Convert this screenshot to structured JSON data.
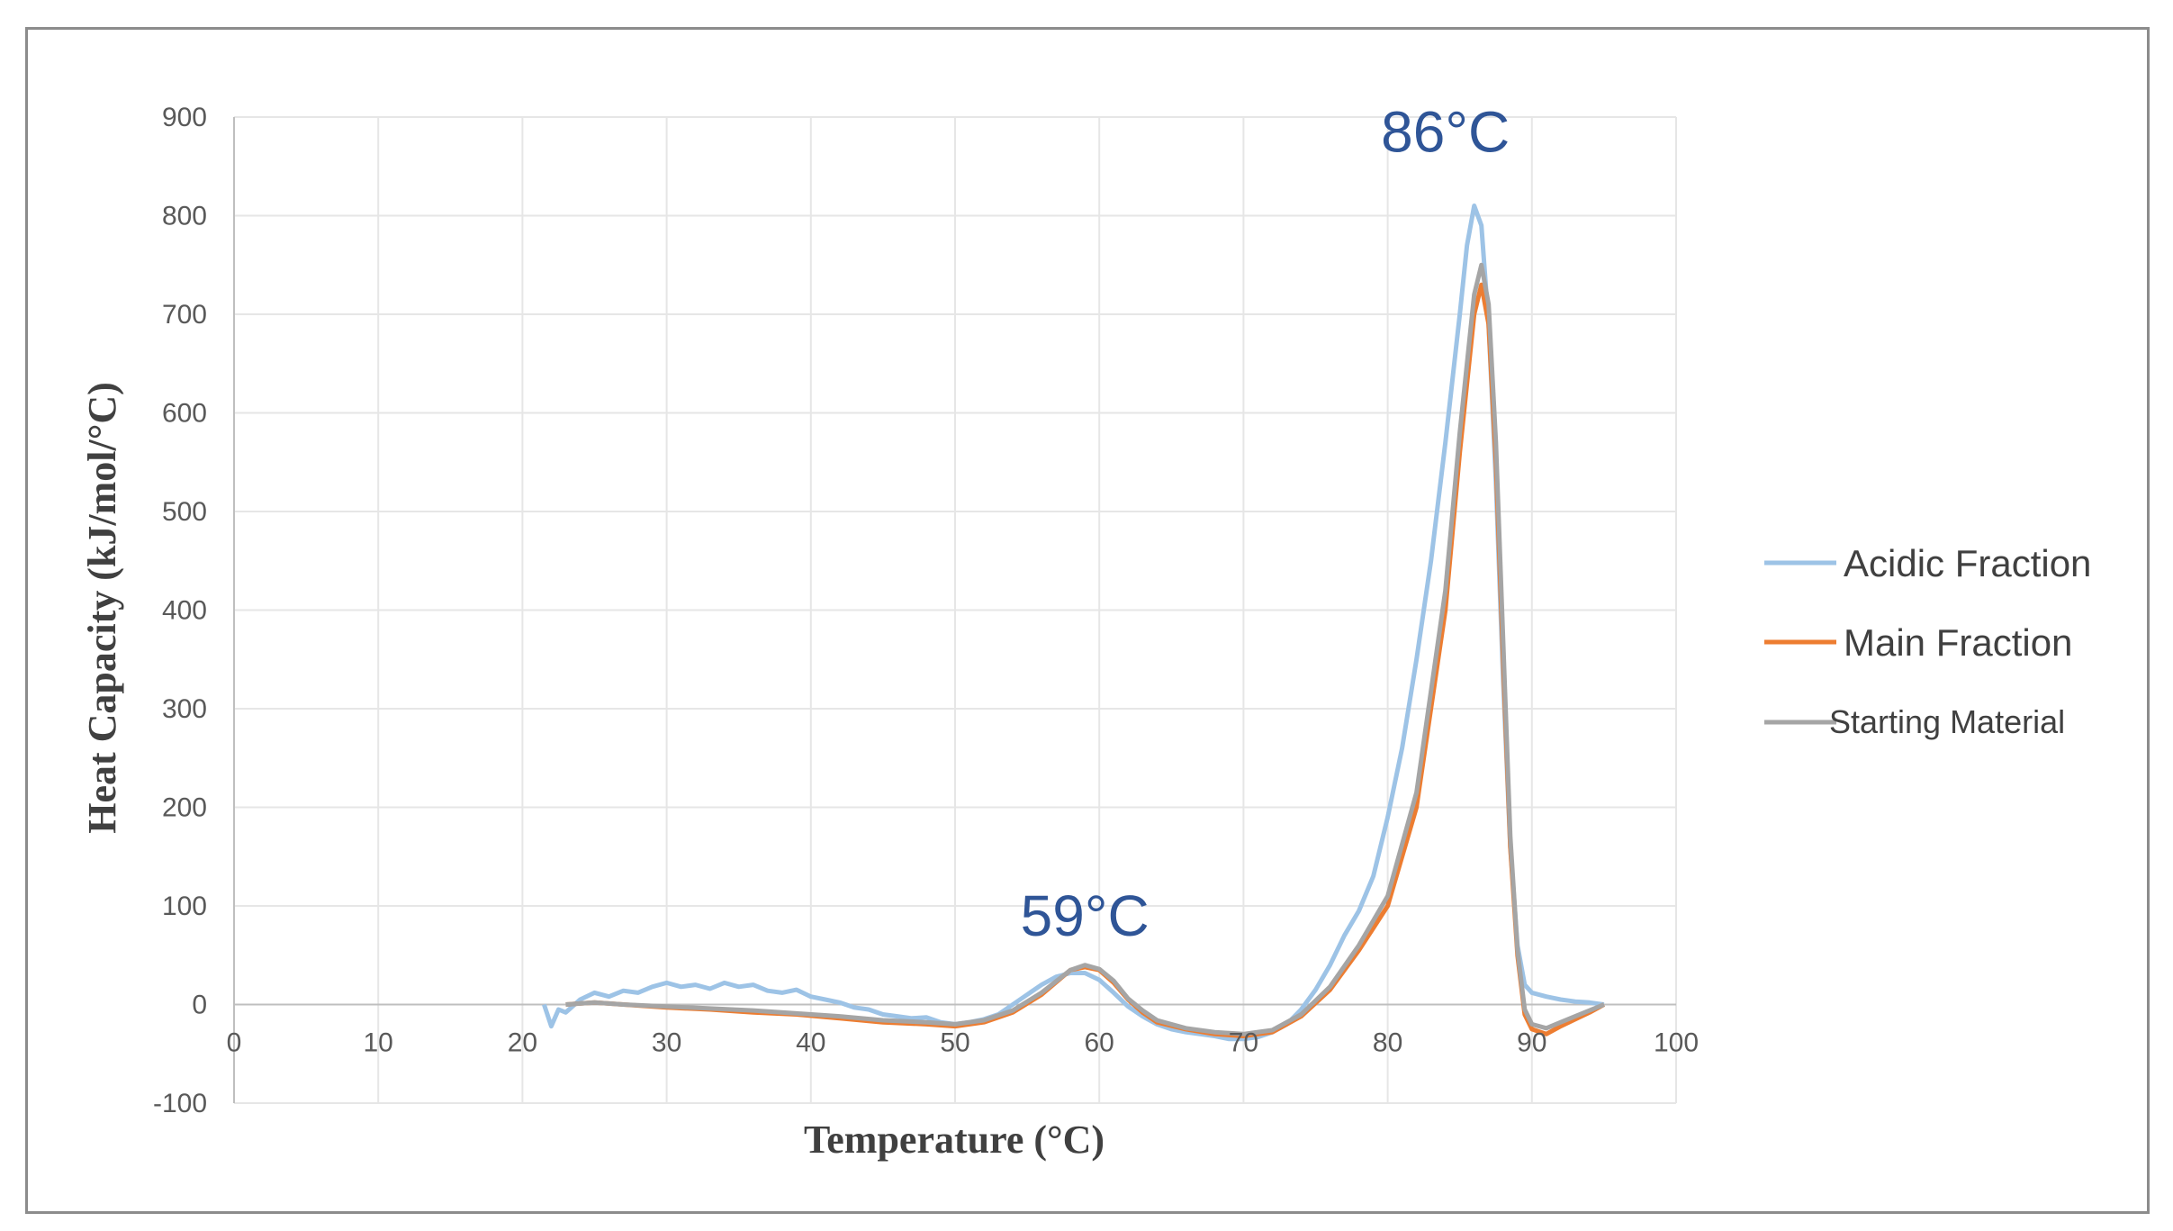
{
  "chart_data": {
    "type": "line",
    "title": "",
    "xlabel": "Temperature (°C)",
    "ylabel": "Heat Capacity (kJ/mol/°C)",
    "xlim": [
      0,
      100
    ],
    "ylim": [
      -100,
      900
    ],
    "xticks": [
      "0",
      "10",
      "20",
      "30",
      "40",
      "50",
      "60",
      "70",
      "80",
      "90",
      "100"
    ],
    "yticks": [
      "-100",
      "0",
      "100",
      "200",
      "300",
      "400",
      "500",
      "600",
      "700",
      "800",
      "900"
    ],
    "grid": true,
    "legend_position": "right",
    "annotations": [
      {
        "text": "86°C",
        "x": 84,
        "y": 865
      },
      {
        "text": "59°C",
        "x": 59,
        "y": 70
      }
    ],
    "series": [
      {
        "name": "Acidic Fraction",
        "color": "#9dc3e6",
        "points": [
          [
            21.5,
            0
          ],
          [
            22,
            -22
          ],
          [
            22.5,
            -5
          ],
          [
            23,
            -8
          ],
          [
            24,
            5
          ],
          [
            25,
            12
          ],
          [
            26,
            8
          ],
          [
            27,
            14
          ],
          [
            28,
            12
          ],
          [
            29,
            18
          ],
          [
            30,
            22
          ],
          [
            31,
            18
          ],
          [
            32,
            20
          ],
          [
            33,
            16
          ],
          [
            34,
            22
          ],
          [
            35,
            18
          ],
          [
            36,
            20
          ],
          [
            37,
            14
          ],
          [
            38,
            12
          ],
          [
            39,
            15
          ],
          [
            40,
            8
          ],
          [
            41,
            5
          ],
          [
            42,
            2
          ],
          [
            43,
            -3
          ],
          [
            44,
            -5
          ],
          [
            45,
            -10
          ],
          [
            46,
            -12
          ],
          [
            47,
            -14
          ],
          [
            48,
            -13
          ],
          [
            49,
            -18
          ],
          [
            50,
            -20
          ],
          [
            51,
            -18
          ],
          [
            52,
            -15
          ],
          [
            53,
            -10
          ],
          [
            54,
            0
          ],
          [
            55,
            10
          ],
          [
            56,
            20
          ],
          [
            57,
            28
          ],
          [
            58,
            32
          ],
          [
            59,
            32
          ],
          [
            60,
            25
          ],
          [
            61,
            12
          ],
          [
            62,
            -2
          ],
          [
            63,
            -12
          ],
          [
            64,
            -20
          ],
          [
            65,
            -25
          ],
          [
            66,
            -28
          ],
          [
            67,
            -30
          ],
          [
            68,
            -32
          ],
          [
            69,
            -35
          ],
          [
            70,
            -35
          ],
          [
            71,
            -33
          ],
          [
            72,
            -28
          ],
          [
            73,
            -20
          ],
          [
            74,
            -5
          ],
          [
            75,
            15
          ],
          [
            76,
            40
          ],
          [
            77,
            70
          ],
          [
            78,
            95
          ],
          [
            79,
            130
          ],
          [
            80,
            190
          ],
          [
            81,
            260
          ],
          [
            82,
            350
          ],
          [
            83,
            450
          ],
          [
            84,
            570
          ],
          [
            85,
            700
          ],
          [
            85.5,
            770
          ],
          [
            86,
            810
          ],
          [
            86.5,
            790
          ],
          [
            87,
            690
          ],
          [
            87.5,
            530
          ],
          [
            88,
            330
          ],
          [
            88.5,
            160
          ],
          [
            89,
            60
          ],
          [
            89.5,
            20
          ],
          [
            90,
            12
          ],
          [
            91,
            8
          ],
          [
            92,
            5
          ],
          [
            93,
            3
          ],
          [
            94,
            2
          ],
          [
            95,
            0
          ]
        ]
      },
      {
        "name": "Main Fraction",
        "color": "#ed7d31",
        "points": [
          [
            23,
            0
          ],
          [
            25,
            2
          ],
          [
            27,
            0
          ],
          [
            30,
            -3
          ],
          [
            33,
            -5
          ],
          [
            36,
            -8
          ],
          [
            39,
            -10
          ],
          [
            42,
            -14
          ],
          [
            45,
            -18
          ],
          [
            48,
            -20
          ],
          [
            50,
            -22
          ],
          [
            52,
            -18
          ],
          [
            54,
            -8
          ],
          [
            56,
            10
          ],
          [
            58,
            35
          ],
          [
            59,
            38
          ],
          [
            60,
            35
          ],
          [
            61,
            22
          ],
          [
            62,
            5
          ],
          [
            63,
            -8
          ],
          [
            64,
            -18
          ],
          [
            66,
            -25
          ],
          [
            68,
            -30
          ],
          [
            70,
            -32
          ],
          [
            72,
            -28
          ],
          [
            74,
            -12
          ],
          [
            76,
            15
          ],
          [
            78,
            55
          ],
          [
            80,
            100
          ],
          [
            82,
            200
          ],
          [
            84,
            400
          ],
          [
            85,
            560
          ],
          [
            86,
            700
          ],
          [
            86.5,
            730
          ],
          [
            87,
            690
          ],
          [
            87.5,
            550
          ],
          [
            88,
            350
          ],
          [
            88.5,
            160
          ],
          [
            89,
            50
          ],
          [
            89.5,
            -10
          ],
          [
            90,
            -25
          ],
          [
            91,
            -30
          ],
          [
            92,
            -22
          ],
          [
            93,
            -15
          ],
          [
            94,
            -8
          ],
          [
            95,
            0
          ]
        ]
      },
      {
        "name": "Starting Material",
        "color": "#a5a5a5",
        "points": [
          [
            23,
            0
          ],
          [
            25,
            2
          ],
          [
            27,
            0
          ],
          [
            30,
            -2
          ],
          [
            33,
            -4
          ],
          [
            36,
            -6
          ],
          [
            39,
            -9
          ],
          [
            42,
            -12
          ],
          [
            45,
            -16
          ],
          [
            48,
            -18
          ],
          [
            50,
            -20
          ],
          [
            52,
            -16
          ],
          [
            54,
            -6
          ],
          [
            56,
            12
          ],
          [
            58,
            35
          ],
          [
            59,
            40
          ],
          [
            60,
            36
          ],
          [
            61,
            24
          ],
          [
            62,
            6
          ],
          [
            63,
            -6
          ],
          [
            64,
            -16
          ],
          [
            66,
            -24
          ],
          [
            68,
            -28
          ],
          [
            70,
            -30
          ],
          [
            72,
            -26
          ],
          [
            74,
            -10
          ],
          [
            76,
            18
          ],
          [
            78,
            60
          ],
          [
            80,
            110
          ],
          [
            82,
            215
          ],
          [
            84,
            420
          ],
          [
            85,
            580
          ],
          [
            86,
            720
          ],
          [
            86.5,
            750
          ],
          [
            87,
            710
          ],
          [
            87.5,
            570
          ],
          [
            88,
            370
          ],
          [
            88.5,
            170
          ],
          [
            89,
            55
          ],
          [
            89.5,
            -5
          ],
          [
            90,
            -20
          ],
          [
            91,
            -24
          ],
          [
            92,
            -18
          ],
          [
            93,
            -12
          ],
          [
            94,
            -6
          ],
          [
            95,
            0
          ]
        ]
      }
    ]
  }
}
